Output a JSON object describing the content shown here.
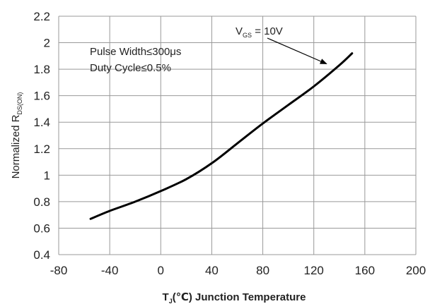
{
  "chart_data": {
    "type": "line",
    "xlabel": {
      "main": "T",
      "sub": "J",
      "rest": "(℃) Junction Temperature"
    },
    "ylabel": {
      "main": "Normalized R",
      "sub": "DS(ON)"
    },
    "xlim": [
      -80,
      200
    ],
    "ylim": [
      0.4,
      2.2
    ],
    "x_ticks": [
      "-80",
      "-40",
      "0",
      "40",
      "80",
      "120",
      "160",
      "200"
    ],
    "x_tick_values": [
      -80,
      -40,
      0,
      40,
      80,
      120,
      160,
      200
    ],
    "y_ticks": [
      "0.4",
      "0.6",
      "0.8",
      "1",
      "1.2",
      "1.4",
      "1.6",
      "1.8",
      "2",
      "2.2"
    ],
    "y_tick_values": [
      0.4,
      0.6,
      0.8,
      1.0,
      1.2,
      1.4,
      1.6,
      1.8,
      2.0,
      2.2
    ],
    "grid": true,
    "series": [
      {
        "x": [
          -55,
          -40,
          -20,
          0,
          20,
          40,
          60,
          80,
          100,
          120,
          140,
          150
        ],
        "y": [
          0.67,
          0.73,
          0.8,
          0.88,
          0.97,
          1.09,
          1.24,
          1.39,
          1.53,
          1.67,
          1.83,
          1.92
        ]
      }
    ],
    "annotations": [
      {
        "lines": [
          "Pulse Width≤300μs",
          "Duty Cycle≤0.5%"
        ]
      },
      {
        "main": "V",
        "sub": "GS",
        "rest": " = 10V",
        "arrow_to": [
          130,
          1.83
        ]
      }
    ],
    "colors": {
      "line": "#000000",
      "grid": "#999999",
      "text": "#222222"
    }
  }
}
